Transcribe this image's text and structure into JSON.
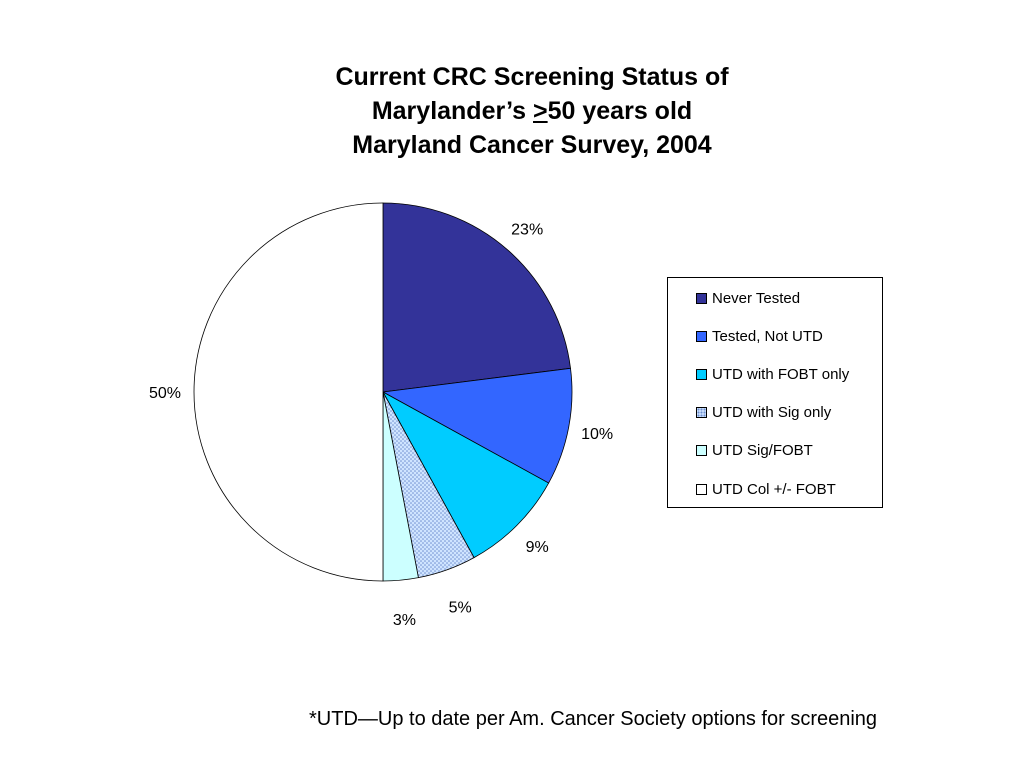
{
  "title": {
    "line1": "Current CRC Screening Status of",
    "line2_pre": "Marylander’s ",
    "line2_sym": ">",
    "line2_post": "50 years old",
    "line3": "Maryland Cancer Survey, 2004"
  },
  "footnote": "*UTD—Up to date per Am. Cancer Society options for screening",
  "chart_data": {
    "type": "pie",
    "start_angle_deg": 0,
    "direction": "clockwise",
    "slices": [
      {
        "label": "Never Tested",
        "value": 23,
        "display": "23%",
        "color": "#333399",
        "pattern": "solid"
      },
      {
        "label": "Tested, Not UTD",
        "value": 10,
        "display": "10%",
        "color": "#3366ff",
        "pattern": "solid"
      },
      {
        "label": "UTD with FOBT only",
        "value": 9,
        "display": "9%",
        "color": "#00ccff",
        "pattern": "solid"
      },
      {
        "label": "UTD with Sig only",
        "value": 5,
        "display": "5%",
        "color": "#cfe4ff",
        "pattern": "dots"
      },
      {
        "label": "UTD Sig/FOBT",
        "value": 3,
        "display": "3%",
        "color": "#ccffff",
        "pattern": "solid"
      },
      {
        "label": "UTD Col +/- FOBT",
        "value": 50,
        "display": "50%",
        "color": "#ffffff",
        "pattern": "solid"
      }
    ],
    "legend_position": "right"
  }
}
